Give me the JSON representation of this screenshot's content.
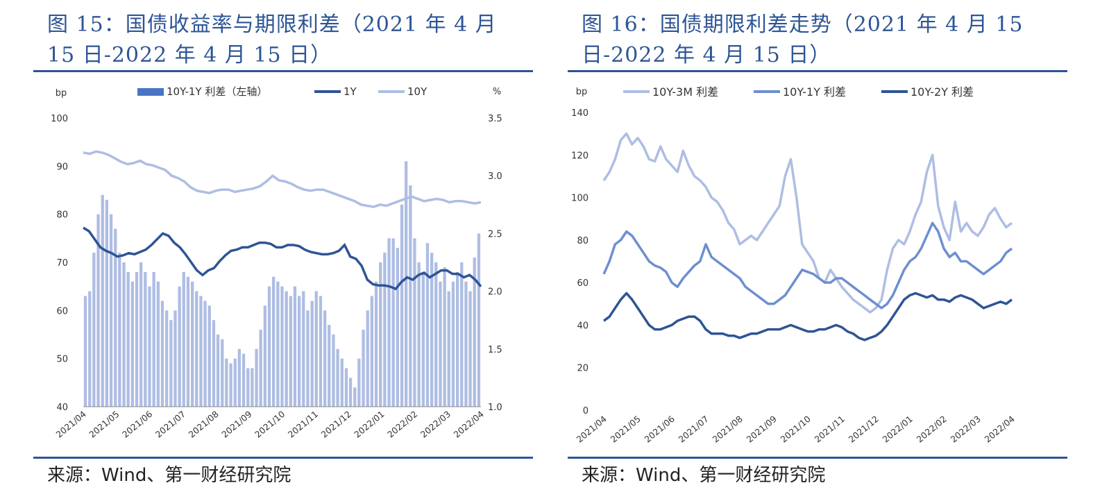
{
  "colors": {
    "title": "#2d5596",
    "bar": "#4a74c4",
    "dark": "#2e5496",
    "mid": "#6d8fd0",
    "light": "#aebde3"
  },
  "left": {
    "title": "图 15：国债收益率与期限利差（2021 年 4 月 15 日-2022 年 4 月 15 日）",
    "source": "来源：Wind、第一财经研究院"
  },
  "right": {
    "title": "图 16：国债期限利差走势（2021 年 4 月 15 日-2022 年 4 月 15 日）",
    "source": "来源：Wind、第一财经研究院"
  },
  "chart_data": [
    {
      "type": "bar+line",
      "title": "",
      "ylabel_left": "bp",
      "ylabel_right": "%",
      "ylim_left": [
        40,
        100
      ],
      "ylim_right": [
        1.0,
        3.5
      ],
      "yticks_left": [
        "40",
        "50",
        "60",
        "70",
        "80",
        "90",
        "100"
      ],
      "yticks_right": [
        "1.0",
        "1.5",
        "2.0",
        "2.5",
        "3.0",
        "3.5"
      ],
      "x_ticks": [
        "2021/04",
        "2021/05",
        "2021/06",
        "2021/07",
        "2021/08",
        "2021/09",
        "2021/10",
        "2021/11",
        "2021/12",
        "2022/01",
        "2022/02",
        "2022/03",
        "2022/04"
      ],
      "legend_position": "top",
      "series": [
        {
          "name": "10Y-1Y 利差（左轴）",
          "type": "bar",
          "axis": "left",
          "values": [
            63,
            64,
            72,
            80,
            84,
            83,
            80,
            77,
            72,
            70,
            68,
            66,
            68,
            70,
            68,
            65,
            68,
            66,
            62,
            60,
            58,
            60,
            65,
            68,
            67,
            66,
            64,
            63,
            62,
            61,
            58,
            55,
            54,
            50,
            49,
            50,
            52,
            51,
            48,
            48,
            52,
            56,
            61,
            65,
            67,
            66,
            65,
            64,
            63,
            65,
            63,
            64,
            60,
            62,
            64,
            63,
            60,
            57,
            55,
            52,
            50,
            48,
            46,
            44,
            50,
            56,
            60,
            63,
            66,
            70,
            72,
            75,
            75,
            73,
            82,
            91,
            86,
            75,
            70,
            68,
            74,
            72,
            70,
            66,
            69,
            64,
            66,
            68,
            70,
            66,
            64,
            71,
            76
          ]
        },
        {
          "name": "1Y",
          "type": "line",
          "axis": "right",
          "values": [
            2.55,
            2.52,
            2.45,
            2.38,
            2.35,
            2.33,
            2.3,
            2.31,
            2.33,
            2.32,
            2.34,
            2.36,
            2.4,
            2.45,
            2.5,
            2.48,
            2.42,
            2.38,
            2.32,
            2.25,
            2.18,
            2.14,
            2.18,
            2.2,
            2.26,
            2.31,
            2.35,
            2.36,
            2.38,
            2.38,
            2.4,
            2.42,
            2.42,
            2.41,
            2.38,
            2.38,
            2.4,
            2.4,
            2.39,
            2.36,
            2.34,
            2.33,
            2.32,
            2.32,
            2.33,
            2.35,
            2.4,
            2.3,
            2.28,
            2.22,
            2.1,
            2.06,
            2.05,
            2.05,
            2.04,
            2.02,
            2.08,
            2.12,
            2.1,
            2.14,
            2.16,
            2.12,
            2.15,
            2.18,
            2.18,
            2.15,
            2.15,
            2.12,
            2.14,
            2.1,
            2.04
          ]
        },
        {
          "name": "10Y",
          "type": "line",
          "axis": "right",
          "values": [
            3.2,
            3.19,
            3.21,
            3.2,
            3.18,
            3.15,
            3.12,
            3.1,
            3.11,
            3.13,
            3.1,
            3.09,
            3.07,
            3.05,
            3.0,
            2.98,
            2.95,
            2.9,
            2.87,
            2.86,
            2.85,
            2.87,
            2.88,
            2.88,
            2.86,
            2.87,
            2.88,
            2.89,
            2.91,
            2.95,
            3.0,
            2.96,
            2.95,
            2.93,
            2.9,
            2.88,
            2.87,
            2.88,
            2.88,
            2.86,
            2.84,
            2.82,
            2.8,
            2.78,
            2.75,
            2.74,
            2.73,
            2.75,
            2.74,
            2.76,
            2.78,
            2.8,
            2.82,
            2.8,
            2.78,
            2.79,
            2.8,
            2.79,
            2.77,
            2.78,
            2.78,
            2.77,
            2.76,
            2.77
          ]
        }
      ]
    },
    {
      "type": "line",
      "title": "",
      "ylabel": "bp",
      "ylim": [
        0,
        140
      ],
      "yticks": [
        "0",
        "20",
        "40",
        "60",
        "80",
        "100",
        "120",
        "140"
      ],
      "x_ticks": [
        "2021/04",
        "2021/05",
        "2021/06",
        "2021/07",
        "2021/08",
        "2021/09",
        "2021/10",
        "2021/11",
        "2021/12",
        "2022/01",
        "2022/02",
        "2022/03",
        "2022/04"
      ],
      "legend_position": "top",
      "series": [
        {
          "name": "10Y-3M 利差",
          "values": [
            108,
            112,
            118,
            127,
            130,
            125,
            128,
            124,
            118,
            117,
            124,
            118,
            115,
            112,
            122,
            115,
            110,
            108,
            105,
            100,
            98,
            94,
            88,
            85,
            78,
            80,
            82,
            80,
            84,
            88,
            92,
            96,
            110,
            118,
            100,
            78,
            74,
            70,
            62,
            60,
            66,
            62,
            58,
            55,
            52,
            50,
            48,
            46,
            48,
            52,
            66,
            76,
            80,
            78,
            84,
            92,
            98,
            112,
            120,
            96,
            86,
            80,
            98,
            84,
            88,
            84,
            82,
            86,
            92,
            95,
            90,
            86,
            88
          ]
        },
        {
          "name": "10Y-1Y 利差",
          "values": [
            64,
            70,
            78,
            80,
            84,
            82,
            78,
            74,
            70,
            68,
            67,
            65,
            60,
            58,
            62,
            65,
            68,
            70,
            78,
            72,
            70,
            68,
            66,
            64,
            62,
            58,
            56,
            54,
            52,
            50,
            50,
            52,
            54,
            58,
            62,
            66,
            65,
            64,
            62,
            60,
            60,
            62,
            62,
            60,
            58,
            56,
            54,
            52,
            50,
            48,
            50,
            54,
            60,
            66,
            70,
            72,
            76,
            82,
            88,
            84,
            76,
            72,
            74,
            70,
            70,
            68,
            66,
            64,
            66,
            68,
            70,
            74,
            76
          ]
        },
        {
          "name": "10Y-2Y 利差",
          "values": [
            42,
            44,
            48,
            52,
            55,
            52,
            48,
            44,
            40,
            38,
            38,
            39,
            40,
            42,
            43,
            44,
            44,
            42,
            38,
            36,
            36,
            36,
            35,
            35,
            34,
            35,
            36,
            36,
            37,
            38,
            38,
            38,
            39,
            40,
            39,
            38,
            37,
            37,
            38,
            38,
            39,
            40,
            39,
            37,
            36,
            34,
            33,
            34,
            35,
            37,
            40,
            44,
            48,
            52,
            54,
            55,
            54,
            53,
            54,
            52,
            52,
            51,
            53,
            54,
            53,
            52,
            50,
            48,
            49,
            50,
            51,
            50,
            52
          ]
        }
      ]
    }
  ]
}
